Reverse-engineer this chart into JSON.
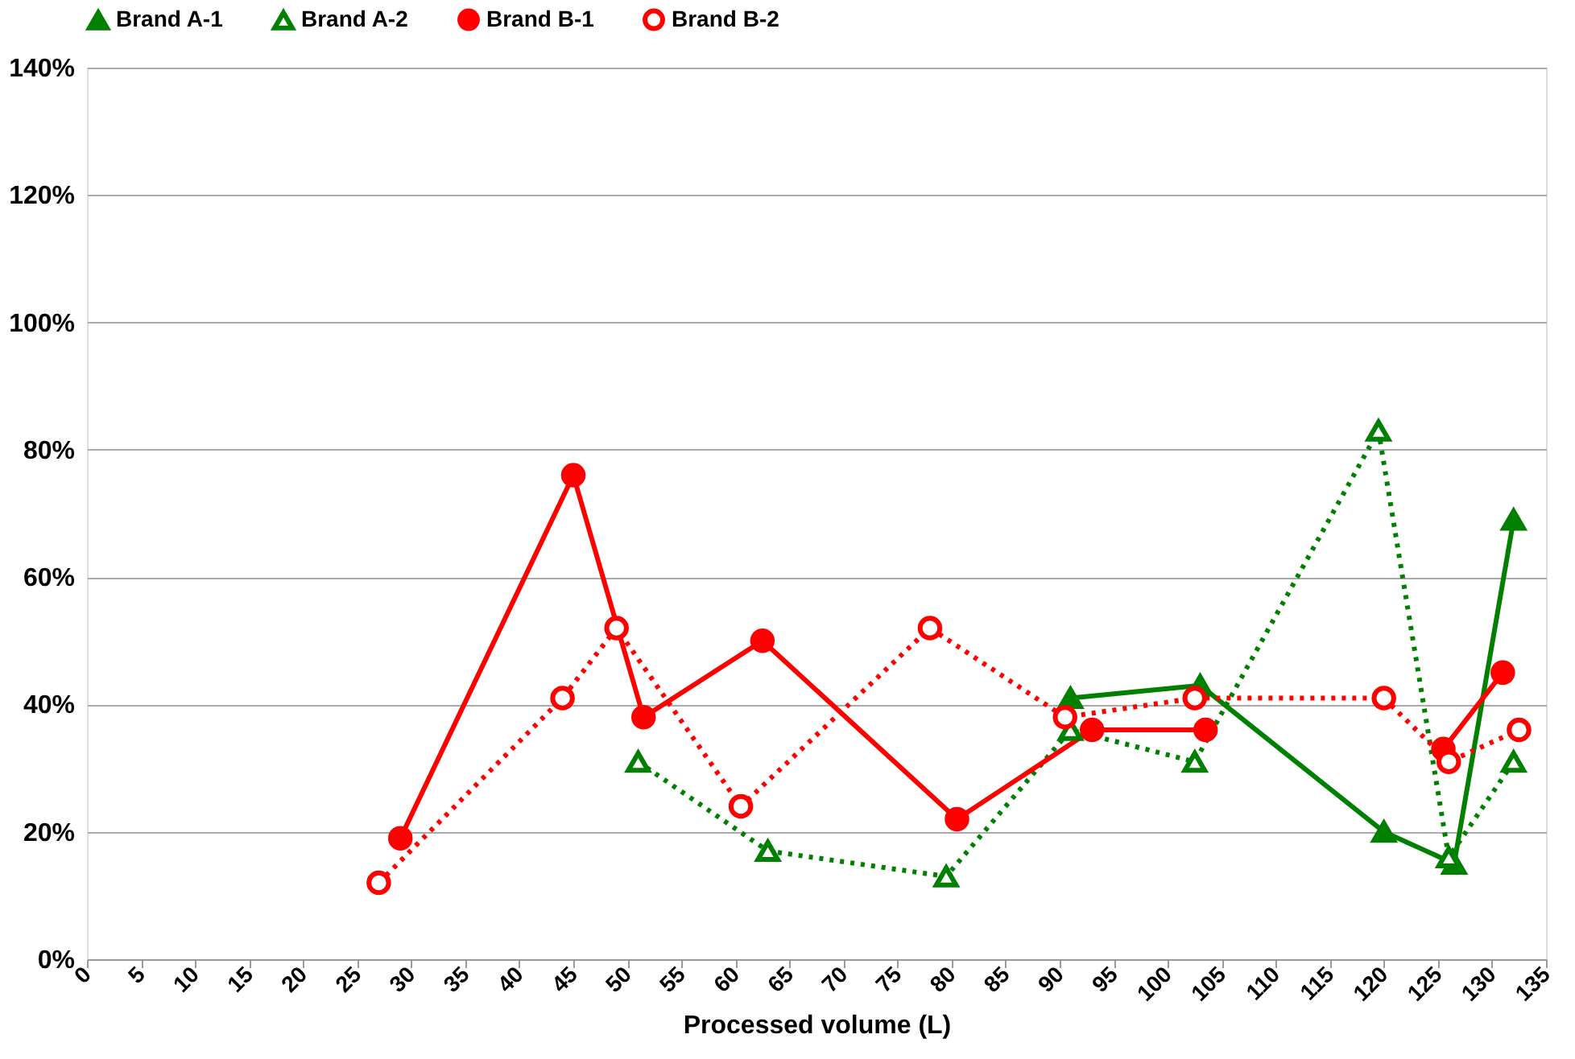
{
  "chart_data": {
    "type": "line",
    "xlabel": "Processed volume (L)",
    "xlim": [
      0,
      135
    ],
    "xticks": [
      0,
      5,
      10,
      15,
      20,
      25,
      30,
      35,
      40,
      45,
      50,
      55,
      60,
      65,
      70,
      75,
      80,
      85,
      90,
      95,
      100,
      105,
      110,
      115,
      120,
      125,
      130,
      135
    ],
    "ylim": [
      0,
      140
    ],
    "yticks": [
      {
        "value": 0,
        "label": "0%"
      },
      {
        "value": 20,
        "label": "20%"
      },
      {
        "value": 40,
        "label": "40%"
      },
      {
        "value": 60,
        "label": "60%"
      },
      {
        "value": 80,
        "label": "80%"
      },
      {
        "value": 100,
        "label": "100%"
      },
      {
        "value": 120,
        "label": "120%"
      },
      {
        "value": 140,
        "label": "140%"
      }
    ],
    "grid": "y",
    "legend": "top",
    "series": [
      {
        "name": "Brand A-1",
        "color": "#008000",
        "marker": "triangle",
        "line_style": "solid",
        "x": [
          91,
          103,
          120,
          126.5,
          132
        ],
        "values": [
          41,
          43,
          20,
          15,
          69
        ]
      },
      {
        "name": "Brand A-2",
        "color": "#008000",
        "marker": "triangle",
        "line_style": "dotted",
        "x": [
          51,
          63,
          79.5,
          91,
          102.5,
          119.5,
          126,
          132
        ],
        "values": [
          31,
          17,
          13,
          36,
          31,
          83,
          16,
          31
        ]
      },
      {
        "name": "Brand B-1",
        "color": "#ff0000",
        "marker": "circle",
        "line_style": "solid",
        "x": [
          29,
          45,
          51.5,
          62.5,
          80.5,
          93,
          103.5,
          114,
          125.5,
          131
        ],
        "values": [
          19,
          76,
          38,
          50,
          22,
          36,
          36,
          null,
          33,
          45
        ]
      },
      {
        "name": "Brand B-2",
        "color": "#ff0000",
        "marker": "circle",
        "line_style": "dotted",
        "x": [
          27,
          44,
          49,
          60.5,
          78,
          90.5,
          102.5,
          120,
          126,
          132.5
        ],
        "values": [
          12,
          41,
          52,
          24,
          52,
          38,
          41,
          41,
          31,
          36
        ]
      }
    ]
  }
}
